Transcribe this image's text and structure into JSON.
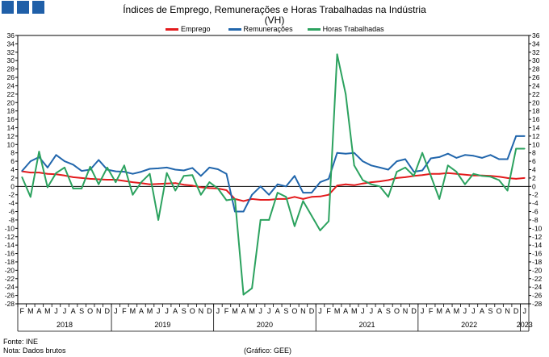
{
  "header": {
    "title": "Índices de Emprego, Remunerações e Horas Trabalhadas na Indústria",
    "subtitle": "(VH)"
  },
  "footer": {
    "source": "Fonte: INE",
    "note": "Nota: Dados brutos",
    "credit": "(Gráfico: GEE)"
  },
  "colors": {
    "emprego": "#e31a1c",
    "remuneracoes": "#2166ac",
    "horas": "#2ca25f",
    "logo": "#1f5fa8"
  },
  "chart_data": {
    "type": "line",
    "months": [
      "F",
      "M",
      "A",
      "M",
      "J",
      "J",
      "A",
      "S",
      "O",
      "N",
      "D",
      "J",
      "F",
      "M",
      "A",
      "M",
      "J",
      "J",
      "A",
      "S",
      "O",
      "N",
      "D",
      "J",
      "F",
      "M",
      "A",
      "M",
      "J",
      "J",
      "A",
      "S",
      "O",
      "N",
      "D",
      "J",
      "F",
      "M",
      "A",
      "M",
      "J",
      "J",
      "A",
      "S",
      "O",
      "N",
      "D",
      "J",
      "F",
      "M",
      "A",
      "M",
      "J",
      "J",
      "A",
      "S",
      "O",
      "N",
      "D",
      "J"
    ],
    "years": [
      {
        "label": "2018",
        "start": 0,
        "end": 10
      },
      {
        "label": "2019",
        "start": 11,
        "end": 22
      },
      {
        "label": "2020",
        "start": 23,
        "end": 34
      },
      {
        "label": "2021",
        "start": 35,
        "end": 46
      },
      {
        "label": "2022",
        "start": 47,
        "end": 58
      },
      {
        "label": "2023",
        "start": 59,
        "end": 59
      }
    ],
    "ylim": [
      -28,
      36
    ],
    "yticks": [
      -28,
      -26,
      -24,
      -22,
      -20,
      -18,
      -16,
      -14,
      -12,
      -10,
      -8,
      -6,
      -4,
      -2,
      0,
      2,
      4,
      6,
      8,
      10,
      12,
      14,
      16,
      18,
      20,
      22,
      24,
      26,
      28,
      30,
      32,
      34,
      36
    ],
    "series": [
      {
        "name": "Emprego",
        "key": "emprego",
        "values": [
          3.6,
          3.3,
          3.3,
          3.0,
          2.9,
          2.6,
          2.2,
          2.0,
          1.8,
          1.7,
          1.6,
          1.6,
          1.3,
          1.0,
          0.8,
          0.5,
          0.6,
          0.7,
          0.8,
          0.4,
          0.2,
          -0.2,
          -0.4,
          -0.5,
          -0.9,
          -3.0,
          -3.5,
          -3.0,
          -3.2,
          -3.2,
          -3.0,
          -3.0,
          -2.5,
          -3.0,
          -2.5,
          -2.4,
          -2.0,
          0.2,
          0.5,
          0.3,
          0.7,
          1.0,
          1.2,
          1.5,
          2.0,
          2.2,
          2.5,
          2.7,
          3.0,
          3.0,
          3.2,
          3.0,
          2.8,
          2.6,
          2.6,
          2.5,
          2.3,
          2.0,
          1.8,
          2.0
        ]
      },
      {
        "name": "Remunerações",
        "key": "remuneracoes",
        "values": [
          3.7,
          6.0,
          7.0,
          4.5,
          7.5,
          6.0,
          5.2,
          3.7,
          4.0,
          6.3,
          4.0,
          3.6,
          3.5,
          3.0,
          3.5,
          4.2,
          4.3,
          4.5,
          4.0,
          3.8,
          4.4,
          2.5,
          4.5,
          4.1,
          3.0,
          -6.0,
          -6.0,
          -2.0,
          0.0,
          -2.0,
          0.5,
          0.0,
          2.5,
          -1.5,
          -1.5,
          1.0,
          1.8,
          8.0,
          7.8,
          8.0,
          6.0,
          5.0,
          4.5,
          4.0,
          6.0,
          6.5,
          3.5,
          3.8,
          6.7,
          7.0,
          7.8,
          6.8,
          7.5,
          7.3,
          6.8,
          7.5,
          6.5,
          6.5,
          12.0,
          12.0
        ]
      },
      {
        "name": "Horas Trabalhadas",
        "key": "horas",
        "values": [
          2.2,
          -2.5,
          8.3,
          -0.2,
          3.2,
          4.5,
          -0.5,
          -0.5,
          4.7,
          0.5,
          4.5,
          1.0,
          5.0,
          -2.0,
          1.0,
          3.0,
          -8.0,
          3.2,
          -1.0,
          2.5,
          2.7,
          -2.0,
          1.0,
          -0.5,
          -3.3,
          -3.0,
          -25.8,
          -24.3,
          -8.0,
          -8.0,
          -1.5,
          -2.5,
          -9.5,
          -3.5,
          -7.0,
          -10.5,
          -8.3,
          31.5,
          22.0,
          5.0,
          1.5,
          0.5,
          0.0,
          -2.5,
          3.5,
          4.5,
          2.5,
          8.0,
          2.5,
          -3.0,
          5.0,
          3.5,
          0.5,
          3.0,
          2.5,
          2.3,
          1.5,
          -1.0,
          9.0,
          9.0
        ]
      }
    ]
  }
}
